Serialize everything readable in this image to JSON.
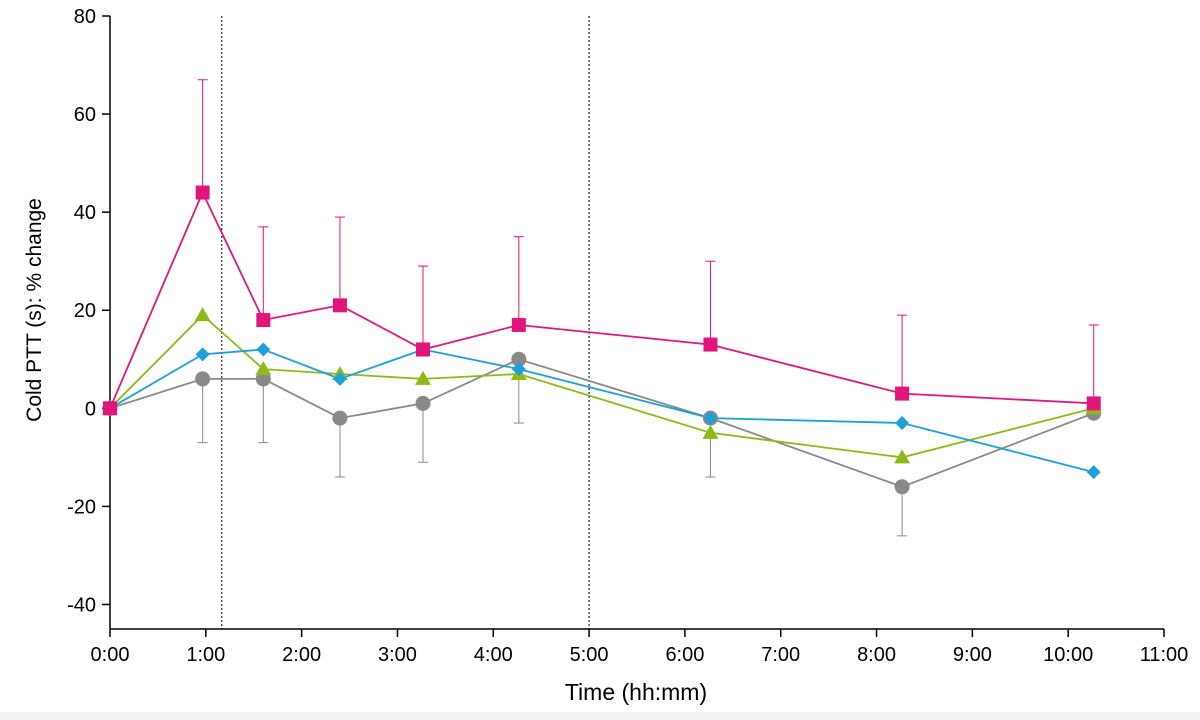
{
  "chart_data": {
    "type": "line",
    "title": "",
    "xlabel": "Time (hh:mm)",
    "ylabel": "Cold PTT (s): % change",
    "xlim": [
      0,
      660
    ],
    "ylim": [
      -45,
      80
    ],
    "x_ticks": [
      {
        "value": 0,
        "label": "0:00"
      },
      {
        "value": 60,
        "label": "1:00"
      },
      {
        "value": 120,
        "label": "2:00"
      },
      {
        "value": 180,
        "label": "3:00"
      },
      {
        "value": 240,
        "label": "4:00"
      },
      {
        "value": 300,
        "label": "5:00"
      },
      {
        "value": 360,
        "label": "6:00"
      },
      {
        "value": 420,
        "label": "7:00"
      },
      {
        "value": 480,
        "label": "8:00"
      },
      {
        "value": 540,
        "label": "9:00"
      },
      {
        "value": 600,
        "label": "10:00"
      },
      {
        "value": 660,
        "label": "11:00"
      }
    ],
    "y_ticks": [
      {
        "value": 80,
        "label": "80"
      },
      {
        "value": 60,
        "label": "60"
      },
      {
        "value": 40,
        "label": "40"
      },
      {
        "value": 20,
        "label": "20"
      },
      {
        "value": 0,
        "label": "0"
      },
      {
        "value": -20,
        "label": "-20"
      },
      {
        "value": -40,
        "label": "-40"
      }
    ],
    "vlines": [
      70,
      300
    ],
    "series": [
      {
        "name": "grey-circle",
        "color": "#898989",
        "marker": "circle",
        "x": [
          0,
          58,
          96,
          144,
          196,
          256,
          376,
          496,
          616
        ],
        "y": [
          0,
          6,
          6,
          -2,
          1,
          10,
          -2,
          -16,
          -1
        ],
        "error_dir": "down",
        "error": [
          0,
          13,
          13,
          12,
          12,
          13,
          12,
          10,
          0
        ]
      },
      {
        "name": "green-triangle",
        "color": "#8dba17",
        "marker": "triangle",
        "x": [
          0,
          58,
          96,
          144,
          196,
          256,
          376,
          496,
          616
        ],
        "y": [
          0,
          19,
          8,
          7,
          6,
          7,
          -5,
          -10,
          0
        ],
        "error_dir": "none",
        "error": []
      },
      {
        "name": "blue-diamond",
        "color": "#1ea0d8",
        "marker": "diamond",
        "x": [
          0,
          58,
          96,
          144,
          196,
          256,
          376,
          496,
          616
        ],
        "y": [
          0,
          11,
          12,
          6,
          12,
          8,
          -2,
          -3,
          -13
        ],
        "error_dir": "none",
        "error": []
      },
      {
        "name": "magenta-square",
        "color": "#e2157a",
        "marker": "square",
        "x": [
          0,
          58,
          96,
          144,
          196,
          256,
          376,
          496,
          616
        ],
        "y": [
          0,
          44,
          18,
          21,
          12,
          17,
          13,
          3,
          1
        ],
        "error_dir": "up",
        "error": [
          0,
          23,
          19,
          18,
          17,
          18,
          17,
          16,
          16
        ]
      }
    ]
  }
}
